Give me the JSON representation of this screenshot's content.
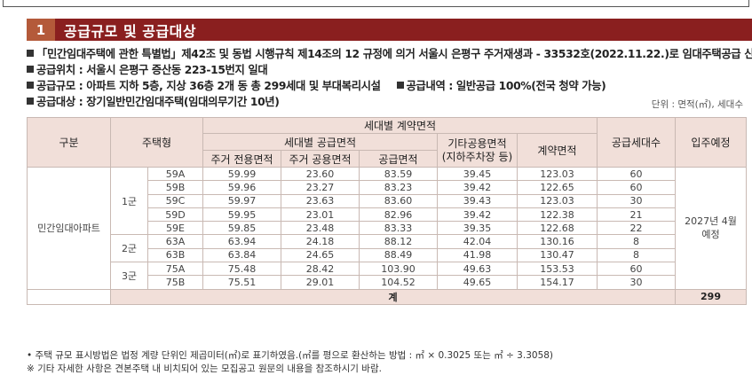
{
  "section": {
    "number": "1",
    "title": "공급규모 및 공급대상"
  },
  "info": {
    "line1": "「민간임대주택에 관한 특별법」제42조 및 동법 시행규칙 제14조의 12 규정에 의거 서울시 은평구 주거재생과 - 33532호(2022.11.22.)로 임대주택공급 신고필",
    "line2": "공급위치 : 서울시 은평구 증산동 223-15번지 일대",
    "line3a": "공급규모 : 아파트 지하 5층, 지상 36층 2개 동 총 299세대 및 부대복리시설",
    "line3b": "공급내역 : 일반공급 100%(전국 청약 가능)",
    "line4": "공급대상 : 장기일반민간임대주택(임대의무기간 10년)",
    "unit": "단위 : 면적(㎡), 세대수"
  },
  "table": {
    "headers": {
      "category": "구분",
      "housing_type": "주택형",
      "contract_area_group": "세대별 계약면적",
      "supply_area_group": "세대별 공급면적",
      "exclusive": "주거 전용면적",
      "common": "주거 공용면적",
      "supply": "공급면적",
      "other_common": "기타공용면적",
      "other_common_sub": "(지하주차장 등)",
      "contract": "계약면적",
      "households": "공급세대수",
      "move_in": "입주예정"
    },
    "category_value": "민간임대아파트",
    "move_in_value_l1": "2027년 4월",
    "move_in_value_l2": "예정",
    "groups": [
      {
        "name": "1군",
        "rows": [
          {
            "type": "59A",
            "exclusive": "59.99",
            "common": "23.60",
            "supply": "83.59",
            "other": "39.45",
            "contract": "123.03",
            "households": "60"
          },
          {
            "type": "59B",
            "exclusive": "59.96",
            "common": "23.27",
            "supply": "83.23",
            "other": "39.42",
            "contract": "122.65",
            "households": "60"
          },
          {
            "type": "59C",
            "exclusive": "59.97",
            "common": "23.63",
            "supply": "83.60",
            "other": "39.43",
            "contract": "123.03",
            "households": "30"
          },
          {
            "type": "59D",
            "exclusive": "59.95",
            "common": "23.01",
            "supply": "82.96",
            "other": "39.42",
            "contract": "122.38",
            "households": "21"
          },
          {
            "type": "59E",
            "exclusive": "59.85",
            "common": "23.48",
            "supply": "83.33",
            "other": "39.35",
            "contract": "122.68",
            "households": "22"
          }
        ]
      },
      {
        "name": "2군",
        "rows": [
          {
            "type": "63A",
            "exclusive": "63.94",
            "common": "24.18",
            "supply": "88.12",
            "other": "42.04",
            "contract": "130.16",
            "households": "8"
          },
          {
            "type": "63B",
            "exclusive": "63.84",
            "common": "24.65",
            "supply": "88.49",
            "other": "41.98",
            "contract": "130.47",
            "households": "8"
          }
        ]
      },
      {
        "name": "3군",
        "rows": [
          {
            "type": "75A",
            "exclusive": "75.48",
            "common": "28.42",
            "supply": "103.90",
            "other": "49.63",
            "contract": "153.53",
            "households": "60"
          },
          {
            "type": "75B",
            "exclusive": "75.51",
            "common": "29.01",
            "supply": "104.52",
            "other": "49.65",
            "contract": "154.17",
            "households": "30"
          }
        ]
      }
    ],
    "total_label": "계",
    "total_households": "299"
  },
  "footnotes": {
    "note1": "• 주택 규모 표시방법은 법정 계량 단위인 제곱미터(㎡)로 표기하였음.(㎡를 평으로 환산하는 방법 : ㎡ × 0.3025 또는 ㎡ ÷ 3.3058)",
    "note2": "※ 기타 자세한 사항은 견본주택 내 비치되어 있는 모집공고 원문의 내용을 참조하시기 바람."
  }
}
